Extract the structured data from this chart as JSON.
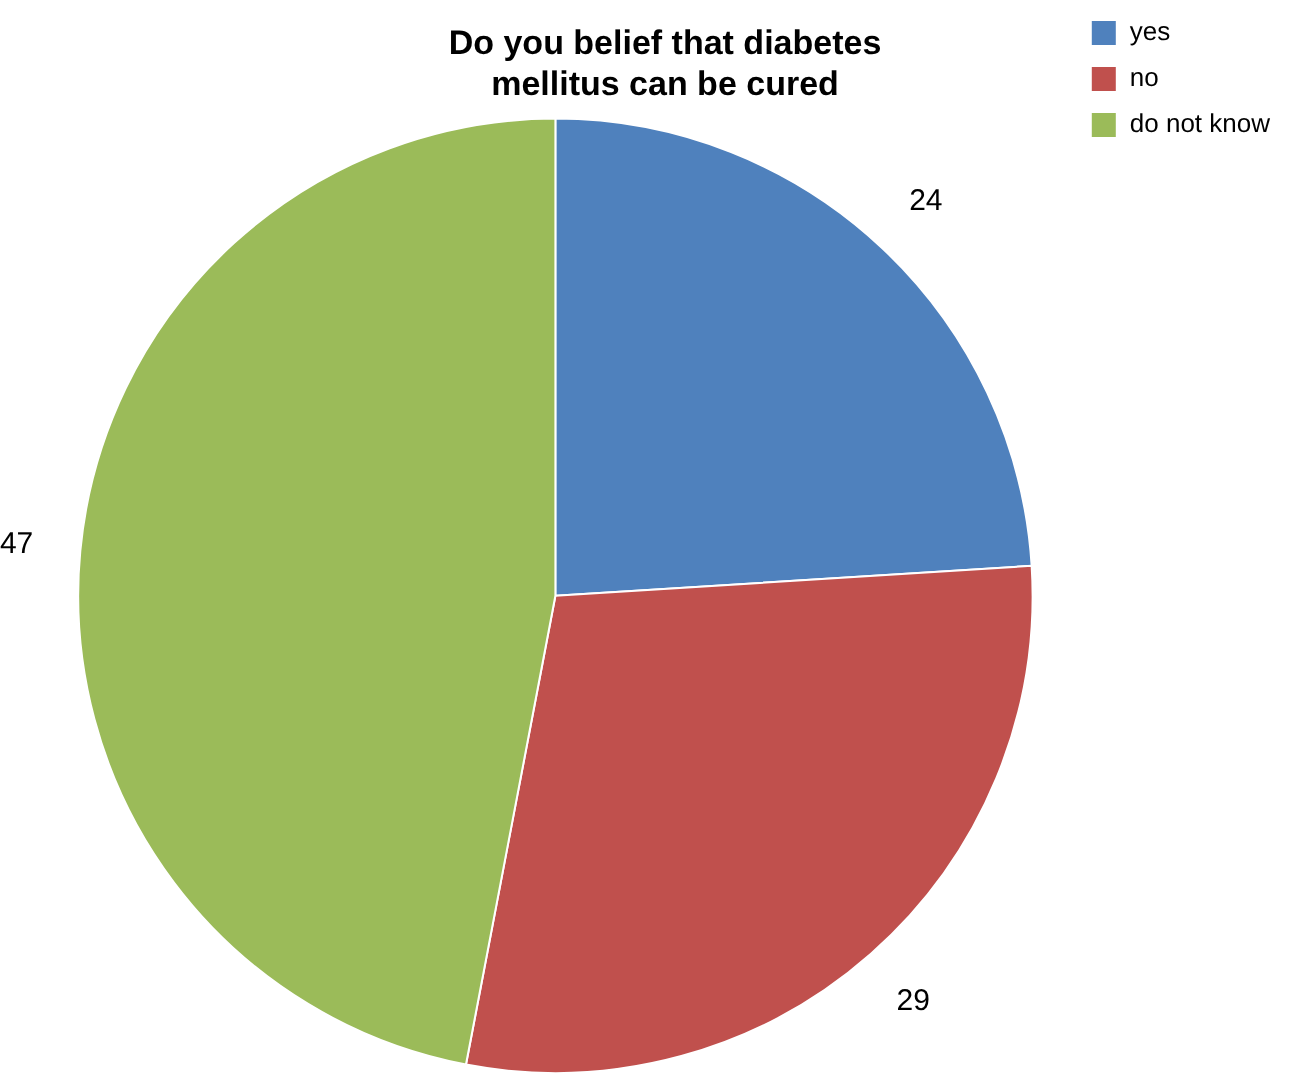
{
  "chart_data": {
    "type": "pie",
    "title": "Do you belief that diabetes mellitus can be cured",
    "categories": [
      "yes",
      "no",
      "do not know"
    ],
    "values": [
      24,
      29,
      47
    ],
    "colors": [
      "#4f81bd",
      "#c0504d",
      "#9bbb59"
    ],
    "data_labels": true,
    "legend": "top right"
  }
}
